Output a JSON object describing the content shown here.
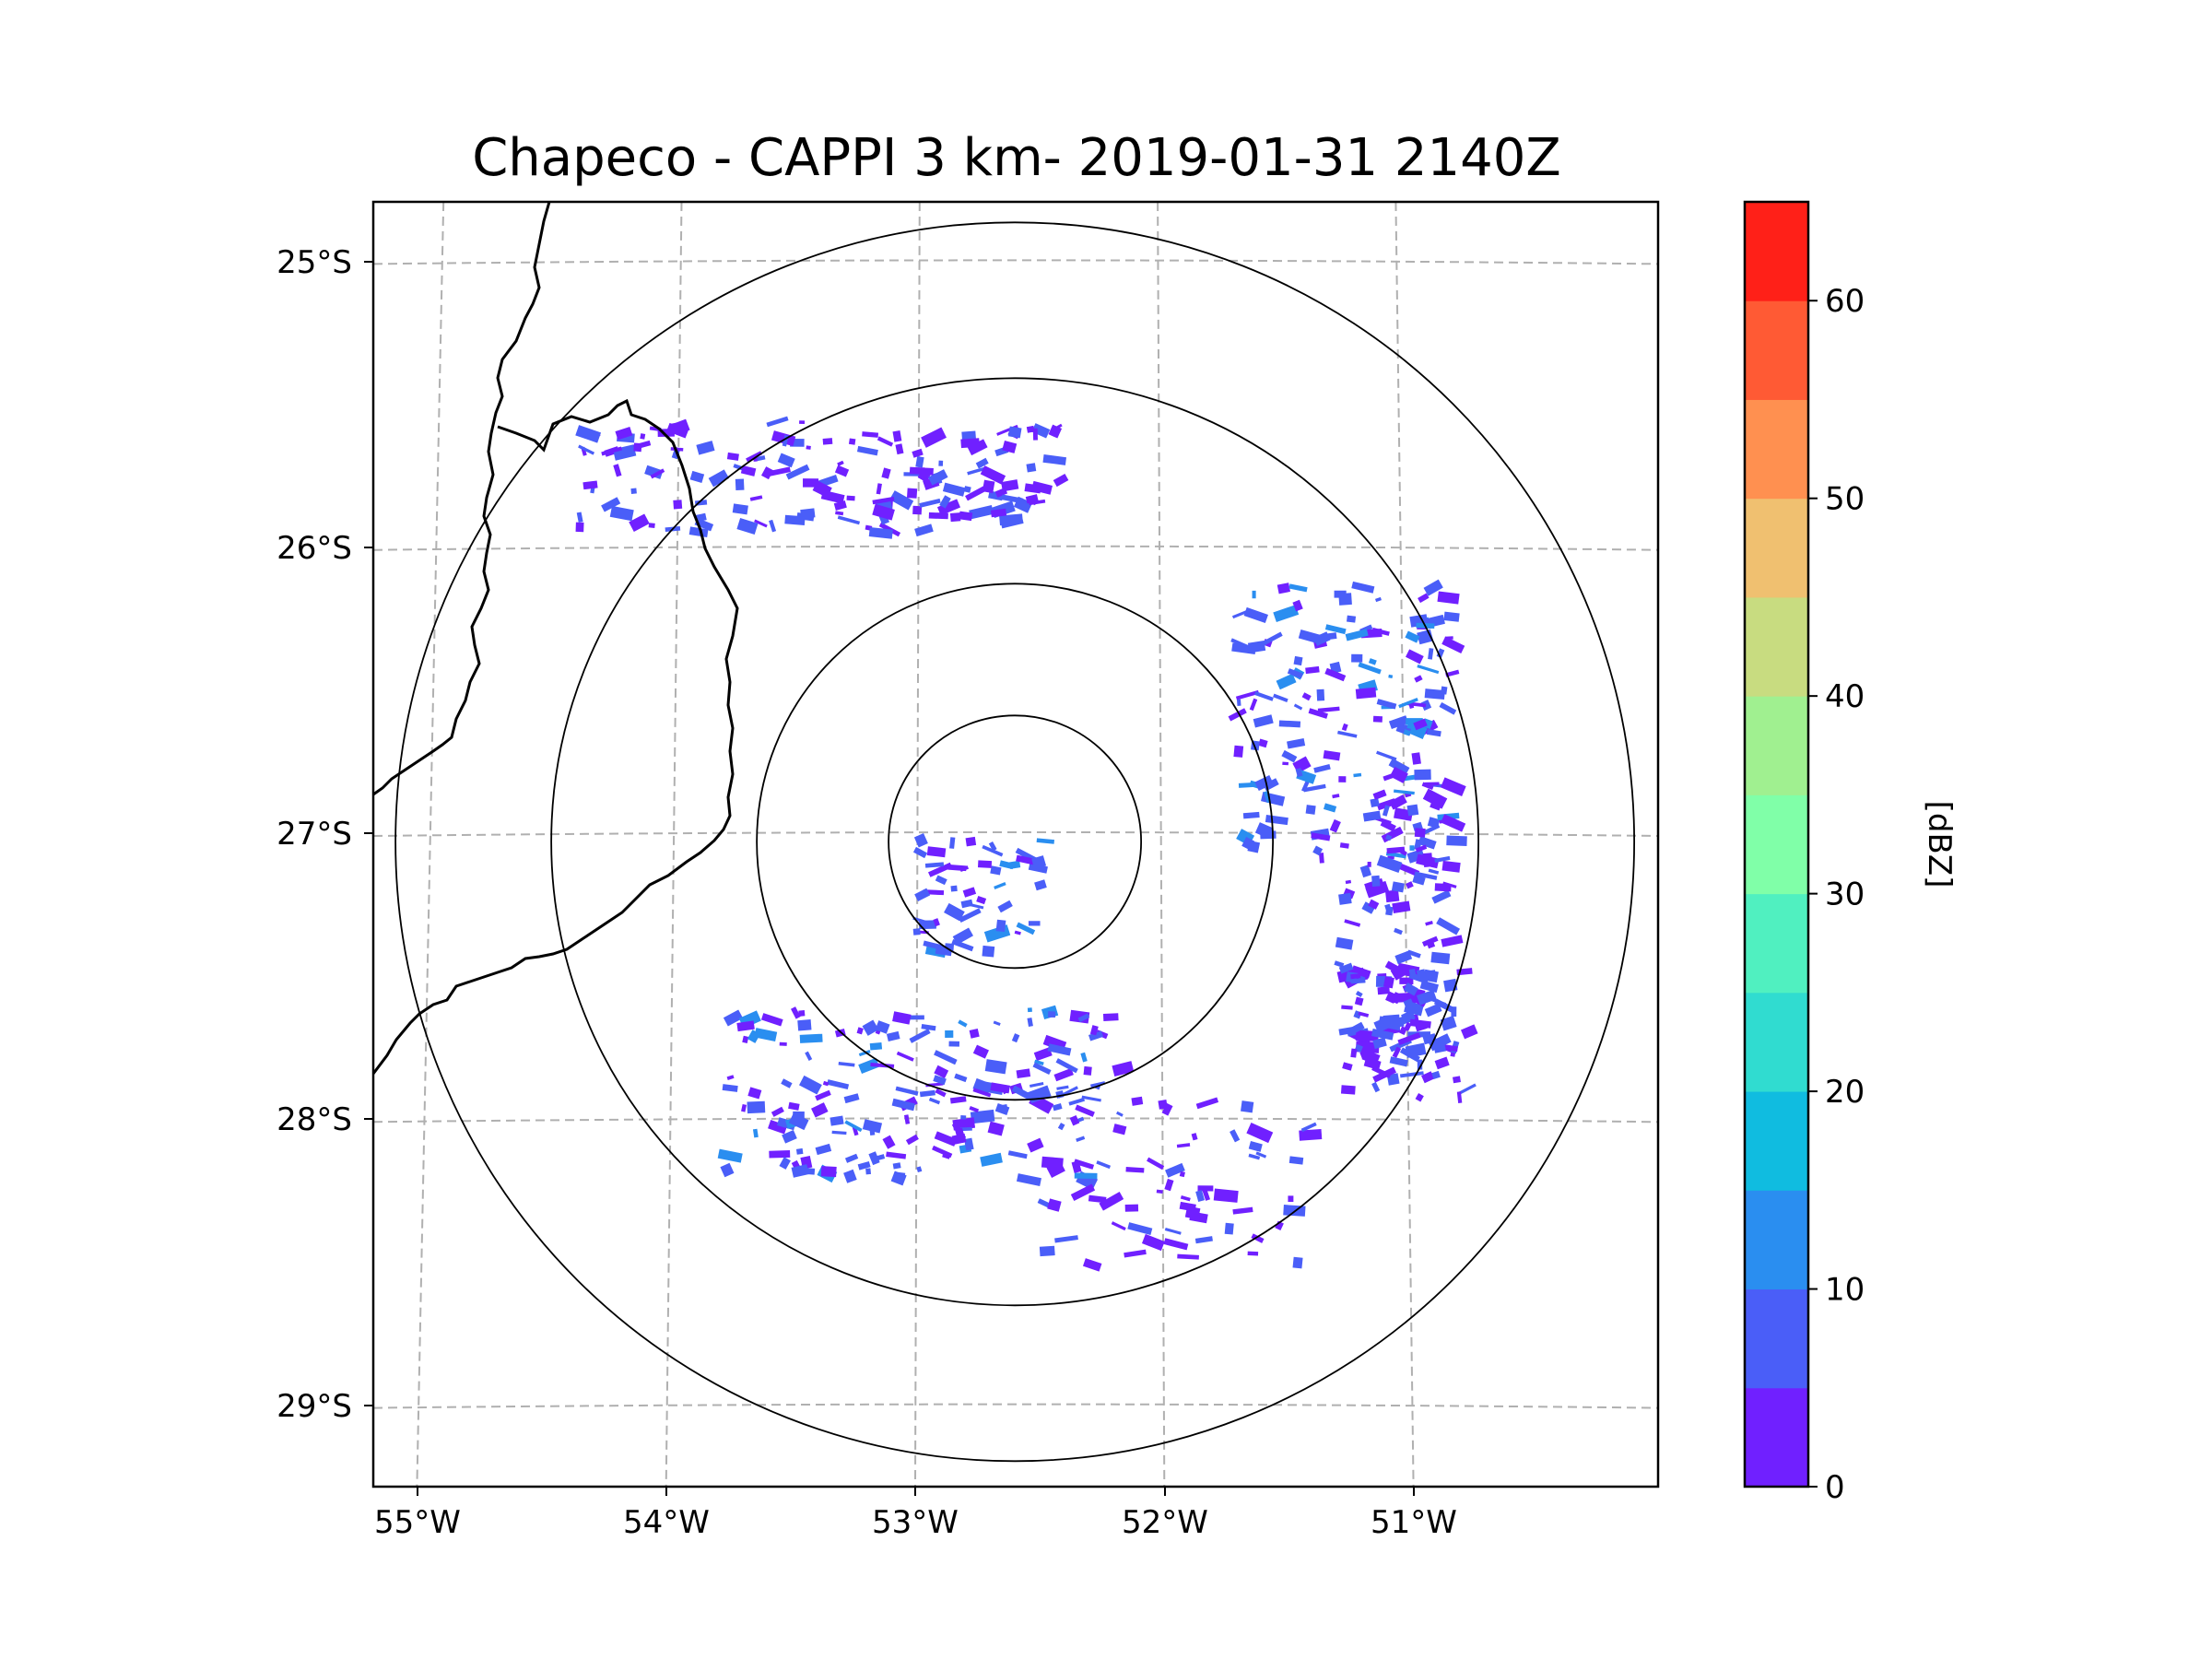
{
  "chart_data": {
    "type": "heatmap",
    "title": "Chapeco - CAPPI 3 km- 2019-01-31 2140Z",
    "radar_site": "Chapeco",
    "product": "CAPPI 3 km",
    "timestamp": "2019-01-31 2140Z",
    "x_ticks": [
      "55°W",
      "54°W",
      "53°W",
      "52°W",
      "51°W"
    ],
    "x_tick_values": [
      -55,
      -54,
      -53,
      -52,
      -51
    ],
    "y_ticks": [
      "25°S",
      "26°S",
      "27°S",
      "28°S",
      "29°S"
    ],
    "y_tick_values": [
      -25,
      -26,
      -27,
      -28,
      -29
    ],
    "lon_range": [
      -55.2,
      -50.0
    ],
    "lat_range": [
      -29.3,
      -24.8
    ],
    "radar_center": {
      "lon": -52.6,
      "lat": -27.03
    },
    "range_rings_km": [
      50,
      100,
      150,
      200
    ],
    "colorbar": {
      "label": "[dBZ]",
      "min": 0,
      "max": 65,
      "ticks": [
        0,
        10,
        20,
        30,
        40,
        50,
        60
      ],
      "tick_labels": [
        "0",
        "10",
        "20",
        "30",
        "40",
        "50",
        "60"
      ],
      "bounds": [
        0,
        5,
        10,
        15,
        20,
        25,
        30,
        35,
        40,
        45,
        50,
        55,
        60,
        65
      ],
      "colors": [
        "#7020ff",
        "#4a5ef8",
        "#2a8ef0",
        "#10bce0",
        "#30dcd0",
        "#50f0c0",
        "#80ffa8",
        "#a0f090",
        "#c8dc80",
        "#f0c070",
        "#ff9050",
        "#ff5a34",
        "#ff2018"
      ]
    },
    "echo_regions": [
      {
        "region": "north arc",
        "lon": -53.4,
        "lat": -25.75,
        "dbz": 5
      },
      {
        "region": "northeast cluster",
        "lon": -51.3,
        "lat": -26.6,
        "dbz": 8
      },
      {
        "region": "east",
        "lon": -51.1,
        "lat": -27.4,
        "dbz": 5
      },
      {
        "region": "southeast",
        "lon": -51.05,
        "lat": -27.7,
        "dbz": 6
      },
      {
        "region": "southwest arc",
        "lon": -53.0,
        "lat": -27.9,
        "dbz": 7
      },
      {
        "region": "near radar",
        "lon": -52.75,
        "lat": -27.2,
        "dbz": 8
      },
      {
        "region": "south",
        "lon": -52.0,
        "lat": -28.2,
        "dbz": 4
      }
    ]
  }
}
